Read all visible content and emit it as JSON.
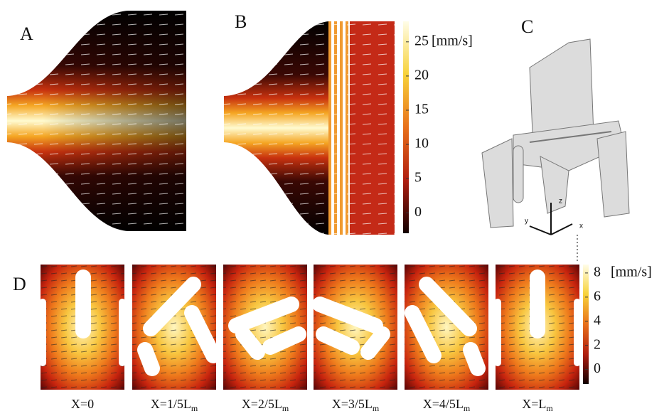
{
  "panel_labels": [
    "A",
    "B",
    "C",
    "D"
  ],
  "colorbar_top": {
    "unit": "[mm/s]",
    "range": [
      -3,
      28
    ],
    "ticks": [
      0,
      5,
      10,
      15,
      20,
      25
    ]
  },
  "colorbar_bottom": {
    "unit": "[mm/s]",
    "range": [
      -1.2,
      8.7
    ],
    "ticks": [
      0,
      2,
      4,
      6,
      8
    ]
  },
  "axis_labels": [
    "z",
    "y",
    "x"
  ],
  "sections": [
    {
      "main": "X=0"
    },
    {
      "main": "X=1/5L",
      "sub": "m"
    },
    {
      "main": "X=2/5L",
      "sub": "m"
    },
    {
      "main": "X=3/5L",
      "sub": "m"
    },
    {
      "main": "X=4/5L",
      "sub": "m"
    },
    {
      "main": "X=L",
      "sub": "m"
    }
  ]
}
